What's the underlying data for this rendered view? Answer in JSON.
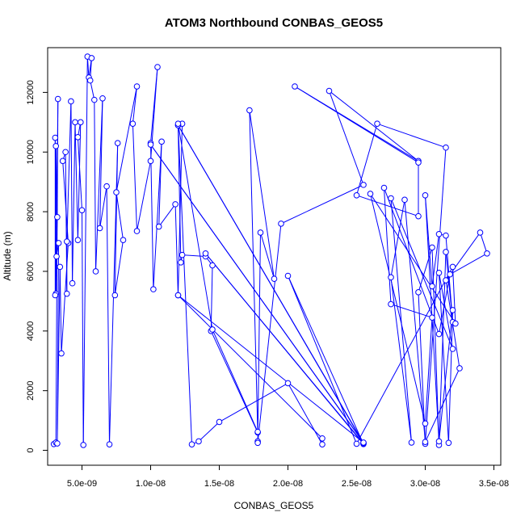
{
  "chart_data": {
    "type": "line",
    "title": "ATOM3 Northbound CONBAS_GEOS5",
    "xlabel": "CONBAS_GEOS5",
    "ylabel": "Altitude (m)",
    "xlim": [
      2.5e-09,
      3.55e-08
    ],
    "ylim": [
      -500,
      13500
    ],
    "x_ticks": [
      5e-09,
      1e-08,
      1.5e-08,
      2e-08,
      2.5e-08,
      3e-08,
      3.5e-08
    ],
    "x_tick_labels": [
      "5.0e-09",
      "1.0e-08",
      "1.5e-08",
      "2.0e-08",
      "2.5e-08",
      "3.0e-08",
      "3.5e-08"
    ],
    "y_ticks": [
      0,
      2000,
      4000,
      6000,
      8000,
      10000,
      12000
    ],
    "y_tick_labels": [
      "0",
      "2000",
      "4000",
      "6000",
      "8000",
      "10000",
      "12000"
    ],
    "grid": false,
    "legend": "none",
    "style": {
      "line_color": "#0000ff",
      "marker": "open-circle"
    },
    "series": [
      {
        "points": [
          [
            2.95e-09,
            210
          ],
          [
            3.1e-09,
            260
          ],
          [
            3.25e-09,
            11780
          ],
          [
            3.1e-09,
            5250
          ],
          [
            3.05e-09,
            10480
          ],
          [
            3.05e-09,
            5200
          ],
          [
            3.2e-09,
            7820
          ],
          [
            3.1e-09,
            10200
          ],
          [
            3.15e-09,
            6500
          ],
          [
            3.3e-09,
            6950
          ],
          [
            3.2e-09,
            230
          ],
          [
            3.4e-09,
            6150
          ],
          [
            3.5e-09,
            3250
          ],
          [
            4e-09,
            6950
          ],
          [
            3.6e-09,
            9700
          ],
          [
            3.8e-09,
            10000
          ],
          [
            3.9e-09,
            5250
          ],
          [
            3.9e-09,
            7000
          ],
          [
            4.2e-09,
            11700
          ],
          [
            4.3e-09,
            5600
          ],
          [
            4.5e-09,
            11000
          ],
          [
            4.7e-09,
            7050
          ],
          [
            4.9e-09,
            11000
          ],
          [
            4.7e-09,
            10500
          ],
          [
            5e-09,
            8050
          ],
          [
            5.1e-09,
            180
          ],
          [
            5.4e-09,
            13200
          ],
          [
            5.5e-09,
            12500
          ],
          [
            5.7e-09,
            13150
          ],
          [
            5.6e-09,
            12400
          ],
          [
            5.9e-09,
            11750
          ],
          [
            6e-09,
            6000
          ],
          [
            6.5e-09,
            11800
          ],
          [
            6.3e-09,
            7450
          ],
          [
            6.8e-09,
            8850
          ],
          [
            7e-09,
            200
          ],
          [
            7.6e-09,
            10300
          ],
          [
            7.4e-09,
            5200
          ],
          [
            8e-09,
            7050
          ],
          [
            7.5e-09,
            8650
          ],
          [
            9e-09,
            12200
          ],
          [
            8.7e-09,
            10950
          ],
          [
            9e-09,
            7350
          ],
          [
            1e-08,
            9700
          ],
          [
            1.05e-08,
            12850
          ],
          [
            1e-08,
            10300
          ],
          [
            1.02e-08,
            5400
          ],
          [
            1.08e-08,
            10350
          ],
          [
            1.06e-08,
            7500
          ],
          [
            1.18e-08,
            8250
          ],
          [
            1.2e-08,
            5200
          ],
          [
            1.23e-08,
            10950
          ],
          [
            1.2e-08,
            10900
          ],
          [
            1.22e-08,
            6300
          ],
          [
            1.23e-08,
            6550
          ],
          [
            1.4e-08,
            6500
          ],
          [
            1.45e-08,
            6200
          ],
          [
            1.44e-08,
            4000
          ],
          [
            1.78e-08,
            600
          ],
          [
            1.72e-08,
            11400
          ],
          [
            1.9e-08,
            5750
          ],
          [
            1.8e-08,
            7300
          ],
          [
            1.78e-08,
            300
          ],
          [
            1.78e-08,
            250
          ],
          [
            1.95e-08,
            7600
          ],
          [
            2.55e-08,
            8900
          ],
          [
            2.3e-08,
            12050
          ],
          [
            2.95e-08,
            9700
          ],
          [
            2.05e-08,
            12200
          ],
          [
            2.95e-08,
            9650
          ],
          [
            2.95e-08,
            7850
          ],
          [
            2.5e-08,
            8550
          ],
          [
            2.65e-08,
            10950
          ],
          [
            3.15e-08,
            10150
          ],
          [
            3e-08,
            220
          ],
          [
            2.95e-08,
            5300
          ],
          [
            3.05e-08,
            6800
          ],
          [
            3.1e-08,
            180
          ],
          [
            3.15e-08,
            6650
          ],
          [
            3.2e-08,
            4300
          ],
          [
            3.15e-08,
            7200
          ],
          [
            3.1e-08,
            7250
          ],
          [
            3.05e-08,
            5500
          ],
          [
            3e-08,
            8550
          ],
          [
            3.1e-08,
            300
          ],
          [
            3.2e-08,
            4700
          ],
          [
            3.17e-08,
            250
          ],
          [
            3.1e-08,
            5950
          ],
          [
            3.2e-08,
            3400
          ],
          [
            2.75e-08,
            8450
          ],
          [
            2.9e-08,
            260
          ],
          [
            2.75e-08,
            5800
          ],
          [
            2.85e-08,
            8400
          ],
          [
            3e-08,
            280
          ],
          [
            3.25e-08,
            2750
          ],
          [
            3.15e-08,
            5700
          ],
          [
            3.4e-08,
            7300
          ],
          [
            3.45e-08,
            6600
          ],
          [
            3.18e-08,
            5900
          ],
          [
            3.1e-08,
            3900
          ],
          [
            2.7e-08,
            8800
          ],
          [
            2.75e-08,
            4900
          ],
          [
            3.05e-08,
            4450
          ],
          [
            3e-08,
            900
          ],
          [
            2.6e-08,
            8600
          ],
          [
            3.22e-08,
            4250
          ],
          [
            3.2e-08,
            6150
          ],
          [
            2.5e-08,
            220
          ],
          [
            2e-08,
            5850
          ],
          [
            2.55e-08,
            210
          ],
          [
            1.4e-08,
            6600
          ],
          [
            2.55e-08,
            230
          ],
          [
            1.2e-08,
            10900
          ],
          [
            2.55e-08,
            250
          ],
          [
            1e-08,
            10250
          ],
          [
            2.55e-08,
            260
          ],
          [
            1.2e-08,
            5200
          ],
          [
            2.25e-08,
            400
          ],
          [
            2.25e-08,
            200
          ],
          [
            2e-08,
            2250
          ],
          [
            1.5e-08,
            950
          ],
          [
            1.35e-08,
            300
          ],
          [
            1.3e-08,
            200
          ],
          [
            1.2e-08,
            10950
          ],
          [
            1.45e-08,
            4050
          ],
          [
            1.78e-08,
            620
          ]
        ]
      }
    ]
  }
}
